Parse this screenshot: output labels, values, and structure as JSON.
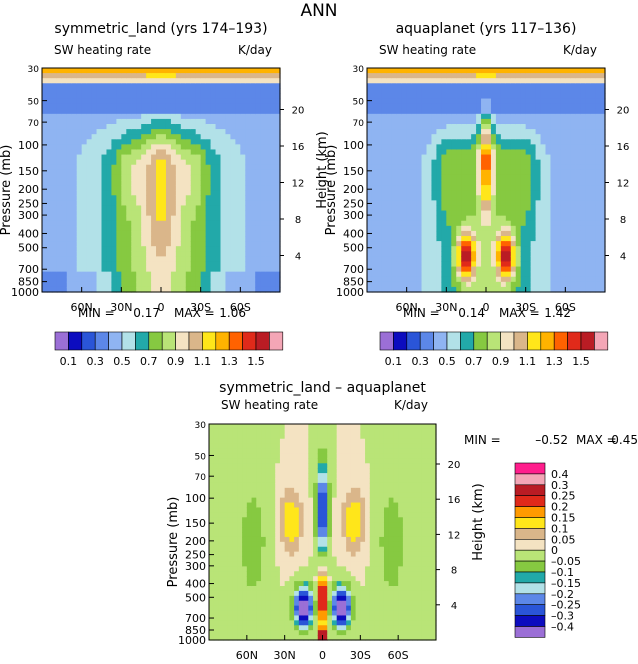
{
  "figure": {
    "title": "ANN"
  },
  "shared": {
    "lat_ticks": [
      "60N",
      "30N",
      "0",
      "30S",
      "60S"
    ],
    "lat_values": [
      60,
      30,
      0,
      -30,
      -60
    ],
    "pressure_ticks": [
      30,
      50,
      70,
      100,
      150,
      200,
      250,
      300,
      400,
      500,
      700,
      850,
      1000
    ],
    "height_ticks": [
      20,
      16,
      12,
      8,
      4
    ],
    "ylabel_left": "Pressure (mb)",
    "ylabel_right": "Height (km)",
    "field_name": "SW heating rate",
    "units": "K/day"
  },
  "chart_data": [
    {
      "type": "heatmap",
      "id": "symmetric_land",
      "title": "symmetric_land (yrs 174–193)",
      "subtitle_left": "SW heating rate",
      "subtitle_right": "K/day",
      "xlabel": "",
      "ylabel": "Pressure (mb)",
      "ylabel_right": "Height (km)",
      "x_ticks": [
        "60N",
        "30N",
        "0",
        "30S",
        "60S"
      ],
      "y_ticks": [
        30,
        50,
        70,
        100,
        150,
        200,
        250,
        300,
        400,
        500,
        700,
        850,
        1000
      ],
      "y_scale": "log",
      "ylim": [
        1000,
        30
      ],
      "min_label": "MIN =",
      "min": "0.17",
      "max_label": "MAX =",
      "max": "1.06",
      "legend": {
        "placement": "bottom",
        "levels": [
          0.1,
          0.2,
          0.3,
          0.4,
          0.5,
          0.6,
          0.7,
          0.8,
          0.9,
          1.0,
          1.1,
          1.2,
          1.3,
          1.4,
          1.5
        ],
        "labels": [
          "0.1",
          "0.3",
          "0.5",
          "0.7",
          "0.9",
          "1.1",
          "1.3",
          "1.5"
        ],
        "colors": [
          "#9b6fd6",
          "#0c0cbf",
          "#2a55d8",
          "#5c87e8",
          "#8fb4f2",
          "#b2e1e8",
          "#22a9a9",
          "#86c941",
          "#b9e477",
          "#f4e3c2",
          "#dab68a",
          "#ffe61a",
          "#ffb300",
          "#ff6200",
          "#e02a1a",
          "#ba1c24",
          "#f4a6b6",
          "#ff1e8c"
        ]
      }
    },
    {
      "type": "heatmap",
      "id": "aquaplanet",
      "title": "aquaplanet (yrs 117–136)",
      "subtitle_left": "SW heating rate",
      "subtitle_right": "K/day",
      "xlabel": "",
      "ylabel": "Pressure (mb)",
      "ylabel_right": "Height (km)",
      "x_ticks": [
        "60N",
        "30N",
        "0",
        "30S",
        "60S"
      ],
      "y_ticks": [
        30,
        50,
        70,
        100,
        150,
        200,
        250,
        300,
        400,
        500,
        700,
        850,
        1000
      ],
      "y_scale": "log",
      "ylim": [
        1000,
        30
      ],
      "min_label": "MIN =",
      "min": "0.14",
      "max_label": "MAX =",
      "max": "1.42",
      "legend": {
        "placement": "bottom",
        "labels": [
          "0.1",
          "0.3",
          "0.5",
          "0.7",
          "0.9",
          "1.1",
          "1.3",
          "1.5"
        ]
      }
    },
    {
      "type": "heatmap",
      "id": "difference",
      "title": "symmetric_land – aquaplanet",
      "subtitle_left": "SW heating rate",
      "subtitle_right": "K/day",
      "xlabel": "",
      "ylabel": "Pressure (mb)",
      "ylabel_right": "Height (km)",
      "x_ticks": [
        "60N",
        "30N",
        "0",
        "30S",
        "60S"
      ],
      "y_ticks": [
        30,
        50,
        70,
        100,
        150,
        200,
        250,
        300,
        400,
        500,
        700,
        850,
        1000
      ],
      "y_scale": "log",
      "ylim": [
        1000,
        30
      ],
      "min_label": "MIN =",
      "min": "–0.52",
      "max_label": "MAX =",
      "max": "0.45",
      "legend": {
        "placement": "right",
        "labels": [
          "0.4",
          "0.3",
          "0.25",
          "0.2",
          "0.15",
          "0.1",
          "0.05",
          "0",
          "–0.05",
          "–0.1",
          "–0.15",
          "–0.2",
          "–0.25",
          "–0.3",
          "–0.4"
        ],
        "colors": [
          "#ff1e8c",
          "#f4a6b6",
          "#ba1c24",
          "#e02a1a",
          "#ff9a00",
          "#ffe61a",
          "#dab68a",
          "#f4e3c2",
          "#86c941",
          "#b9e477",
          "#22a9a9",
          "#b2e1e8",
          "#5c87e8",
          "#2a55d8",
          "#0c0cbf",
          "#9b6fd6"
        ]
      }
    }
  ]
}
